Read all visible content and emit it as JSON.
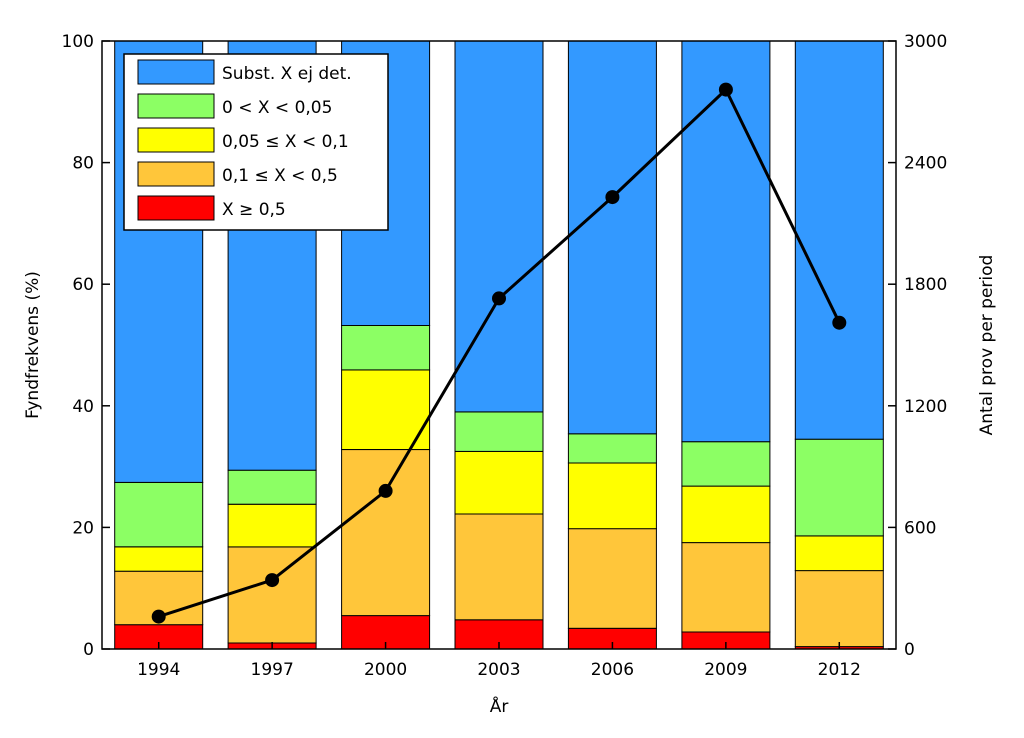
{
  "chart_data": {
    "type": "bar",
    "stacked": true,
    "categories": [
      "1994",
      "1997",
      "2000",
      "2003",
      "2006",
      "2009",
      "2012"
    ],
    "series": [
      {
        "name": "X ≥ 0,5",
        "color": "#ff0000",
        "values": [
          4.0,
          1.0,
          5.5,
          4.8,
          3.4,
          2.8,
          0.4
        ]
      },
      {
        "name": "0,1 ≤ X < 0,5",
        "color": "#ffc63a",
        "values": [
          8.8,
          15.8,
          27.3,
          17.4,
          16.4,
          14.7,
          12.5
        ]
      },
      {
        "name": "0,05 ≤ X < 0,1",
        "color": "#ffff00",
        "values": [
          4.0,
          7.0,
          13.1,
          10.3,
          10.8,
          9.3,
          5.7
        ]
      },
      {
        "name": "0 < X < 0,05",
        "color": "#8cff64",
        "values": [
          10.6,
          5.6,
          7.3,
          6.5,
          4.8,
          7.3,
          15.9
        ]
      },
      {
        "name": "Subst. X ej det.",
        "color": "#3399ff",
        "values": [
          72.6,
          70.6,
          46.8,
          61.0,
          64.6,
          65.9,
          65.5
        ]
      }
    ],
    "line_series": {
      "name": "Antal prov per period",
      "axis": "right",
      "color": "#000000",
      "values": [
        160,
        340,
        780,
        1730,
        2230,
        2760,
        1610
      ]
    },
    "xlabel": "År",
    "ylabel": "Fyndfrekvens (%)",
    "ylabel_right": "Antal prov per period",
    "ylim": [
      0,
      100
    ],
    "ylim_right": [
      0,
      3000
    ],
    "yticks": [
      "0",
      "20",
      "40",
      "60",
      "80",
      "100"
    ],
    "yticks_right": [
      "0",
      "600",
      "1200",
      "1800",
      "2400",
      "3000"
    ],
    "legend_order": [
      "Subst. X ej det.",
      "0 < X < 0,05",
      "0,05 ≤ X < 0,1",
      "0,1 ≤ X < 0,5",
      "X ≥ 0,5"
    ],
    "legend_position": "top-left",
    "grid": false
  }
}
